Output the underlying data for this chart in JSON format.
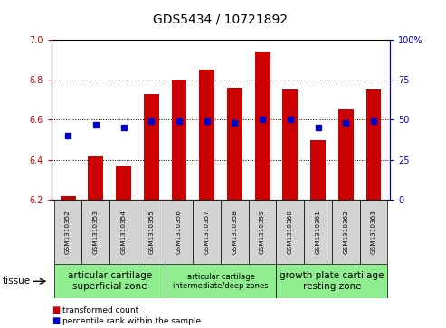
{
  "title": "GDS5434 / 10721892",
  "samples": [
    "GSM1310352",
    "GSM1310353",
    "GSM1310354",
    "GSM1310355",
    "GSM1310356",
    "GSM1310357",
    "GSM1310358",
    "GSM1310359",
    "GSM1310360",
    "GSM1310361",
    "GSM1310362",
    "GSM1310363"
  ],
  "transformed_count": [
    6.22,
    6.42,
    6.37,
    6.73,
    6.8,
    6.85,
    6.76,
    6.94,
    6.75,
    6.5,
    6.65,
    6.75
  ],
  "percentile_rank": [
    40,
    47,
    45,
    49,
    49,
    49,
    48,
    50,
    50,
    45,
    48,
    49
  ],
  "bar_base": 6.2,
  "ylim_left": [
    6.2,
    7.0
  ],
  "ylim_right": [
    0,
    100
  ],
  "yticks_left": [
    6.2,
    6.4,
    6.6,
    6.8,
    7.0
  ],
  "yticks_right": [
    0,
    25,
    50,
    75,
    100
  ],
  "bar_color": "#cc0000",
  "dot_color": "#0000cc",
  "tissue_groups": [
    {
      "label": "articular cartilage\nsuperficial zone",
      "start": 0,
      "end": 4,
      "fontsize": 7.5
    },
    {
      "label": "articular cartilage\nintermediate/deep zones",
      "start": 4,
      "end": 8,
      "fontsize": 6.0
    },
    {
      "label": "growth plate cartilage\nresting zone",
      "start": 8,
      "end": 12,
      "fontsize": 7.5
    }
  ],
  "tissue_bg_color": "#90ee90",
  "sample_bg_color": "#d3d3d3",
  "tissue_label": "tissue",
  "legend_red": "transformed count",
  "legend_blue": "percentile rank within the sample",
  "bar_width": 0.55
}
